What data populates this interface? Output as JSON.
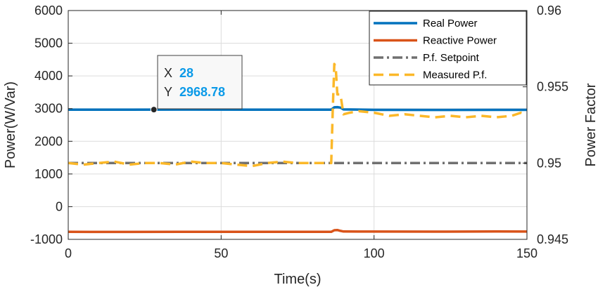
{
  "chart_data": {
    "type": "line",
    "xlabel": "Time(s)",
    "ylabel_left": "Power(W/Var)",
    "ylabel_right": "Power Factor",
    "xlim": [
      0,
      150
    ],
    "ylim_left": [
      -1000,
      6000
    ],
    "ylim_right": [
      0.945,
      0.96
    ],
    "x_ticks": [
      "0",
      "50",
      "100",
      "150"
    ],
    "y_left_ticks": [
      "-1000",
      "0",
      "1000",
      "2000",
      "3000",
      "4000",
      "5000",
      "6000"
    ],
    "y_right_ticks": [
      "0.945",
      "0.95",
      "0.955",
      "0.96"
    ],
    "grid": true,
    "legend_position": "top-right",
    "series": [
      {
        "name": "Real Power",
        "axis": "left",
        "color": "#0072bd",
        "style": "solid",
        "x": [
          0,
          20,
          40,
          60,
          80,
          86,
          87,
          88,
          89,
          90,
          100,
          120,
          140,
          150
        ],
        "y": [
          2968,
          2965,
          2970,
          2968,
          2966,
          2968,
          3040,
          3045,
          3030,
          2975,
          2962,
          2960,
          2962,
          2962
        ]
      },
      {
        "name": "Reactive Power",
        "axis": "left",
        "color": "#d95319",
        "style": "solid",
        "x": [
          0,
          20,
          40,
          60,
          80,
          86,
          87,
          88,
          89,
          90,
          100,
          120,
          140,
          150
        ],
        "y": [
          -770,
          -772,
          -768,
          -770,
          -769,
          -770,
          -720,
          -715,
          -740,
          -760,
          -762,
          -763,
          -760,
          -762
        ]
      },
      {
        "name": "P.f. Setpoint",
        "axis": "right",
        "color": "#707070",
        "style": "dashdot",
        "x": [
          0,
          150
        ],
        "y": [
          0.95,
          0.95
        ]
      },
      {
        "name": "Measured P.f.",
        "axis": "right",
        "color": "#fbb829",
        "style": "dashed",
        "x": [
          0,
          5,
          10,
          15,
          20,
          25,
          30,
          35,
          40,
          45,
          50,
          55,
          60,
          65,
          70,
          75,
          80,
          86,
          86.5,
          87,
          87.5,
          88,
          89,
          90,
          92,
          95,
          100,
          105,
          110,
          115,
          120,
          125,
          130,
          135,
          140,
          145,
          148,
          150
        ],
        "y": [
          0.95,
          0.9499,
          0.95,
          0.9501,
          0.9499,
          0.95,
          0.95,
          0.9499,
          0.9501,
          0.95,
          0.95,
          0.9499,
          0.9498,
          0.95,
          0.9501,
          0.95,
          0.95,
          0.95,
          0.9535,
          0.9565,
          0.9562,
          0.9545,
          0.9545,
          0.9532,
          0.9533,
          0.9534,
          0.9533,
          0.9531,
          0.9532,
          0.9531,
          0.953,
          0.9531,
          0.953,
          0.9531,
          0.953,
          0.9531,
          0.9533,
          0.9532
        ]
      }
    ],
    "datatip": {
      "x_label": "X",
      "x_value": "28",
      "y_label": "Y",
      "y_value": "2968.78",
      "x": 28,
      "y": 2968.78
    }
  }
}
